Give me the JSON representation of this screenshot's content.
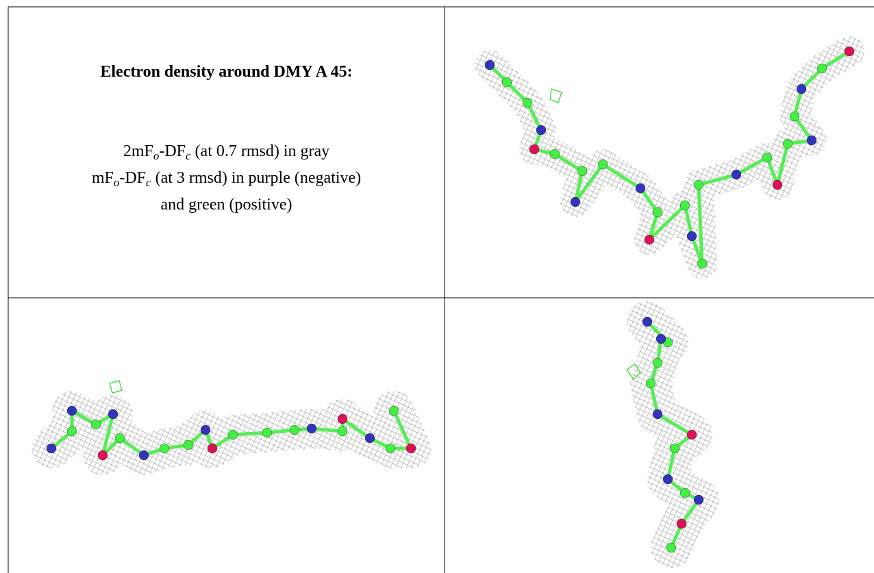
{
  "caption": {
    "title": "Electron density around DMY A 45:",
    "lines": [
      [
        "2mF",
        "o",
        "-DF",
        "c",
        " (at 0.7 rmsd) in gray"
      ],
      [
        "mF",
        "o",
        "-DF",
        "c",
        " (at 3 rmsd) in purple (negative)"
      ],
      [
        "and green (positive)"
      ]
    ]
  }
}
